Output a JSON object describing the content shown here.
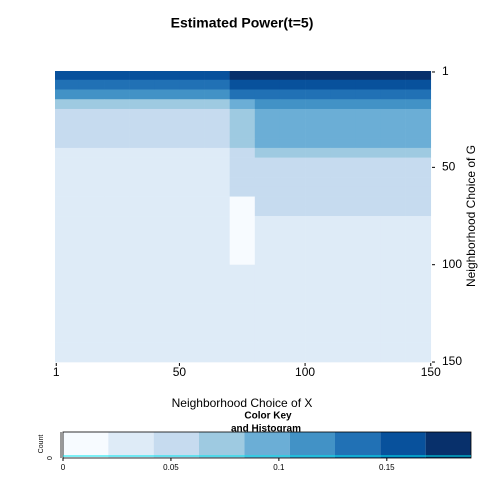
{
  "chart_data": {
    "type": "heatmap",
    "title": "Estimated Power(t=5)",
    "xlabel": "Neighborhood Choice of X",
    "ylabel": "Neighborhood Choice of G",
    "x": [
      5,
      15,
      25,
      35,
      45,
      55,
      65,
      75,
      85,
      95,
      105,
      115,
      125,
      135,
      145
    ],
    "y": [
      2.5,
      7.5,
      12.5,
      17.5,
      22.5,
      27.5,
      32.5,
      37.5,
      42.5,
      47.5,
      52.5,
      57.5,
      62.5,
      67.5,
      72.5,
      77.5,
      82.5,
      87.5,
      92.5,
      97.5,
      102.5,
      107.5,
      112.5,
      117.5,
      122.5,
      127.5,
      132.5,
      137.5,
      142.5,
      147.5
    ],
    "values": [
      [
        0.15,
        0.15,
        0.15,
        0.15,
        0.15,
        0.15,
        0.15,
        0.17,
        0.18,
        0.18,
        0.18,
        0.18,
        0.18,
        0.18,
        0.18
      ],
      [
        0.13,
        0.13,
        0.13,
        0.13,
        0.13,
        0.13,
        0.13,
        0.15,
        0.16,
        0.16,
        0.16,
        0.16,
        0.16,
        0.16,
        0.16
      ],
      [
        0.11,
        0.11,
        0.11,
        0.11,
        0.11,
        0.11,
        0.11,
        0.13,
        0.14,
        0.14,
        0.14,
        0.14,
        0.14,
        0.14,
        0.14
      ],
      [
        0.07,
        0.07,
        0.07,
        0.07,
        0.07,
        0.07,
        0.07,
        0.09,
        0.11,
        0.11,
        0.11,
        0.11,
        0.11,
        0.11,
        0.11
      ],
      [
        0.06,
        0.06,
        0.06,
        0.06,
        0.06,
        0.06,
        0.06,
        0.08,
        0.09,
        0.09,
        0.09,
        0.09,
        0.09,
        0.09,
        0.09
      ],
      [
        0.05,
        0.05,
        0.05,
        0.05,
        0.05,
        0.05,
        0.05,
        0.07,
        0.09,
        0.09,
        0.09,
        0.09,
        0.09,
        0.09,
        0.09
      ],
      [
        0.05,
        0.05,
        0.05,
        0.05,
        0.05,
        0.05,
        0.05,
        0.07,
        0.09,
        0.09,
        0.09,
        0.09,
        0.09,
        0.09,
        0.09
      ],
      [
        0.05,
        0.05,
        0.05,
        0.05,
        0.05,
        0.05,
        0.05,
        0.07,
        0.09,
        0.09,
        0.09,
        0.09,
        0.09,
        0.09,
        0.09
      ],
      [
        0.03,
        0.03,
        0.03,
        0.03,
        0.03,
        0.03,
        0.03,
        0.05,
        0.07,
        0.07,
        0.07,
        0.07,
        0.07,
        0.07,
        0.07
      ],
      [
        0.03,
        0.03,
        0.03,
        0.03,
        0.03,
        0.03,
        0.03,
        0.05,
        0.05,
        0.05,
        0.05,
        0.05,
        0.05,
        0.05,
        0.05
      ],
      [
        0.03,
        0.03,
        0.03,
        0.03,
        0.03,
        0.03,
        0.03,
        0.05,
        0.05,
        0.05,
        0.05,
        0.05,
        0.05,
        0.05,
        0.05
      ],
      [
        0.03,
        0.03,
        0.03,
        0.03,
        0.03,
        0.03,
        0.03,
        0.05,
        0.05,
        0.05,
        0.05,
        0.05,
        0.05,
        0.05,
        0.05
      ],
      [
        0.03,
        0.03,
        0.03,
        0.03,
        0.03,
        0.03,
        0.03,
        0.05,
        0.05,
        0.05,
        0.05,
        0.05,
        0.05,
        0.05,
        0.05
      ],
      [
        0.03,
        0.03,
        0.03,
        0.03,
        0.03,
        0.03,
        0.03,
        0.01,
        0.05,
        0.05,
        0.05,
        0.05,
        0.05,
        0.05,
        0.05
      ],
      [
        0.03,
        0.03,
        0.03,
        0.03,
        0.03,
        0.03,
        0.03,
        0.01,
        0.05,
        0.05,
        0.05,
        0.05,
        0.05,
        0.05,
        0.05
      ],
      [
        0.03,
        0.03,
        0.03,
        0.03,
        0.03,
        0.03,
        0.03,
        0.01,
        0.03,
        0.03,
        0.03,
        0.03,
        0.03,
        0.03,
        0.03
      ],
      [
        0.03,
        0.03,
        0.03,
        0.03,
        0.03,
        0.03,
        0.03,
        0.01,
        0.03,
        0.03,
        0.03,
        0.03,
        0.03,
        0.03,
        0.03
      ],
      [
        0.03,
        0.03,
        0.03,
        0.03,
        0.03,
        0.03,
        0.03,
        0.01,
        0.03,
        0.03,
        0.03,
        0.03,
        0.03,
        0.03,
        0.03
      ],
      [
        0.03,
        0.03,
        0.03,
        0.03,
        0.03,
        0.03,
        0.03,
        0.01,
        0.03,
        0.03,
        0.03,
        0.03,
        0.03,
        0.03,
        0.03
      ],
      [
        0.03,
        0.03,
        0.03,
        0.03,
        0.03,
        0.03,
        0.03,
        0.01,
        0.03,
        0.03,
        0.03,
        0.03,
        0.03,
        0.03,
        0.03
      ],
      [
        0.03,
        0.03,
        0.03,
        0.03,
        0.03,
        0.03,
        0.03,
        0.03,
        0.03,
        0.03,
        0.03,
        0.03,
        0.03,
        0.03,
        0.03
      ],
      [
        0.03,
        0.03,
        0.03,
        0.03,
        0.03,
        0.03,
        0.03,
        0.03,
        0.03,
        0.03,
        0.03,
        0.03,
        0.03,
        0.03,
        0.03
      ],
      [
        0.03,
        0.03,
        0.03,
        0.03,
        0.03,
        0.03,
        0.03,
        0.03,
        0.03,
        0.03,
        0.03,
        0.03,
        0.03,
        0.03,
        0.03
      ],
      [
        0.03,
        0.03,
        0.03,
        0.03,
        0.03,
        0.03,
        0.03,
        0.03,
        0.03,
        0.03,
        0.03,
        0.03,
        0.03,
        0.03,
        0.03
      ],
      [
        0.03,
        0.03,
        0.03,
        0.03,
        0.03,
        0.03,
        0.03,
        0.03,
        0.03,
        0.03,
        0.03,
        0.03,
        0.03,
        0.03,
        0.03
      ],
      [
        0.03,
        0.03,
        0.03,
        0.03,
        0.03,
        0.03,
        0.03,
        0.03,
        0.03,
        0.03,
        0.03,
        0.03,
        0.03,
        0.03,
        0.03
      ],
      [
        0.03,
        0.03,
        0.03,
        0.03,
        0.03,
        0.03,
        0.03,
        0.03,
        0.03,
        0.03,
        0.03,
        0.03,
        0.03,
        0.03,
        0.03
      ],
      [
        0.03,
        0.03,
        0.03,
        0.03,
        0.03,
        0.03,
        0.03,
        0.03,
        0.03,
        0.03,
        0.03,
        0.03,
        0.03,
        0.03,
        0.03
      ],
      [
        0.03,
        0.03,
        0.03,
        0.03,
        0.03,
        0.03,
        0.03,
        0.03,
        0.03,
        0.03,
        0.03,
        0.03,
        0.03,
        0.03,
        0.03
      ],
      [
        0.03,
        0.03,
        0.03,
        0.03,
        0.03,
        0.03,
        0.03,
        0.03,
        0.03,
        0.03,
        0.03,
        0.03,
        0.03,
        0.03,
        0.03
      ]
    ],
    "xlim": [
      0.5,
      150.5
    ],
    "xticks": [
      1,
      50,
      100,
      150
    ],
    "ylim": [
      0.5,
      150.5
    ],
    "yticks": [
      1,
      50,
      100,
      150
    ],
    "color_key": {
      "title": "Color Key",
      "subtitle": "and Histogram",
      "ylabel": "Count",
      "count_tick": 0,
      "breaks": [
        0,
        0.021,
        0.042,
        0.063,
        0.084,
        0.105,
        0.126,
        0.147,
        0.168,
        0.189
      ],
      "colors": [
        "#f7fbff",
        "#deebf7",
        "#c6dbef",
        "#9ecae1",
        "#6baed6",
        "#4292c6",
        "#2171b5",
        "#08519c",
        "#08306b"
      ],
      "ticks": [
        0,
        0.05,
        0.1,
        0.15
      ]
    }
  }
}
